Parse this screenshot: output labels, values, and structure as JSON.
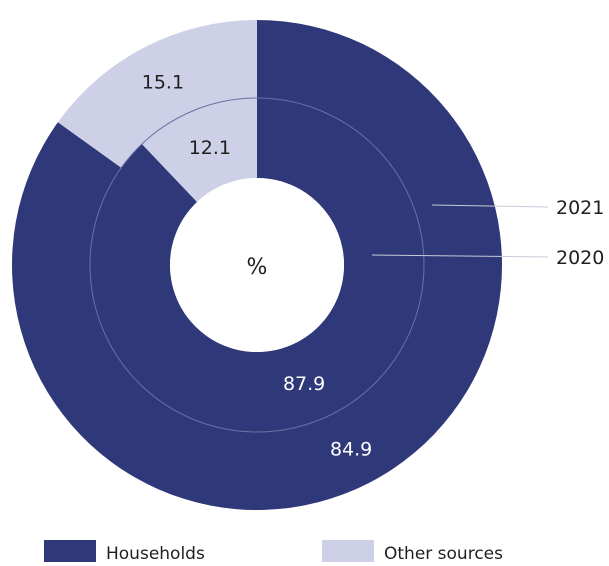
{
  "chart_data": {
    "type": "pie",
    "variant": "nested-donut",
    "unit_label": "%",
    "categories": [
      "Households",
      "Other sources"
    ],
    "colors": [
      "#2f3878",
      "#cdd0e6"
    ],
    "series": [
      {
        "name": "2021",
        "ring": "outer",
        "values": [
          84.9,
          15.1
        ]
      },
      {
        "name": "2020",
        "ring": "inner",
        "values": [
          87.9,
          12.1
        ]
      }
    ],
    "legend_position": "bottom"
  }
}
